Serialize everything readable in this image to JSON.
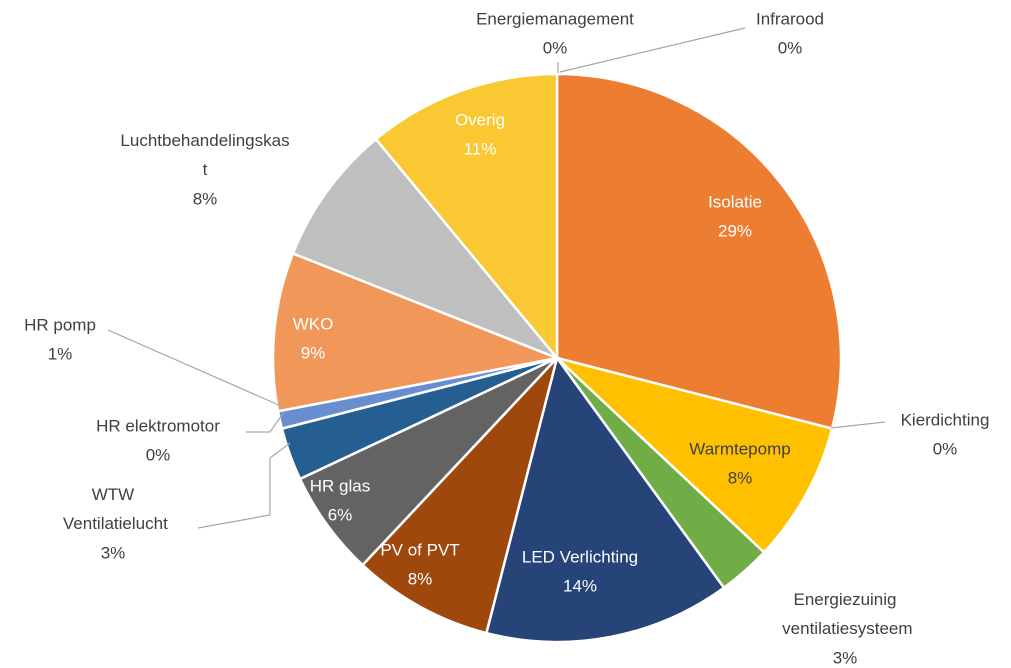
{
  "chart_data": {
    "type": "pie",
    "categories": [
      "Isolatie",
      "Kierdichting",
      "Warmtepomp",
      "Energiezuinig ventilatiesysteem",
      "LED Verlichting",
      "PV of PVT",
      "HR glas",
      "WTW Ventilatielucht",
      "HR elektromotor",
      "HR pomp",
      "WKO",
      "Luchtbehandelingskast",
      "Overig",
      "Energiemanagement",
      "Infrarood"
    ],
    "values": [
      29,
      0,
      8,
      3,
      14,
      8,
      6,
      3,
      0,
      1,
      9,
      8,
      11,
      0,
      0
    ],
    "value_labels": [
      "29%",
      "0%",
      "8%",
      "3%",
      "14%",
      "8%",
      "6%",
      "3%",
      "0%",
      "1%",
      "9%",
      "8%",
      "11%",
      "0%",
      "0%"
    ],
    "colors": [
      "#ED7D31",
      "#A5A5A5",
      "#FFC000",
      "#70AD47",
      "#264478",
      "#9E480E",
      "#636363",
      "#255E91",
      "#5B9BD5",
      "#698ED0",
      "#F1975A",
      "#BFBFBF",
      "#F9C833",
      "#4472C4",
      "#997300"
    ]
  }
}
